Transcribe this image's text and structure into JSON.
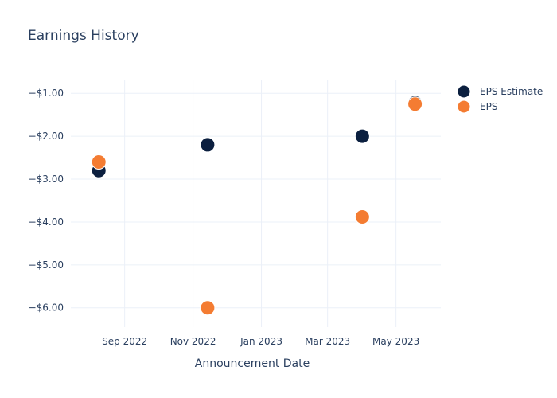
{
  "chart_data": {
    "type": "scatter",
    "title": "Earnings History",
    "xlabel": "Announcement Date",
    "ylabel": "",
    "x_tick_labels": [
      "Sep 2022",
      "Nov 2022",
      "Jan 2023",
      "Mar 2023",
      "May 2023"
    ],
    "x_ticks": [
      "2022-09-01",
      "2022-11-01",
      "2023-01-01",
      "2023-03-01",
      "2023-05-01"
    ],
    "x_range": [
      "2022-07-15",
      "2023-06-10"
    ],
    "y_tick_labels": [
      "−$1.00",
      "−$2.00",
      "−$3.00",
      "−$4.00",
      "−$5.00",
      "−$6.00"
    ],
    "y_ticks": [
      -1,
      -2,
      -3,
      -4,
      -5,
      -6
    ],
    "ylim": [
      -6.45,
      -0.68
    ],
    "grid": true,
    "legend_position": "top-right",
    "series": [
      {
        "name": "EPS Estimate",
        "color": "#0b1f3f",
        "points": [
          {
            "x": "2022-08-09",
            "y": -2.8
          },
          {
            "x": "2022-11-14",
            "y": -2.2
          },
          {
            "x": "2023-04-01",
            "y": -2.0
          },
          {
            "x": "2023-05-18",
            "y": -1.22
          }
        ]
      },
      {
        "name": "EPS",
        "color": "#f47c32",
        "points": [
          {
            "x": "2022-08-09",
            "y": -2.6
          },
          {
            "x": "2022-11-14",
            "y": -6.0
          },
          {
            "x": "2023-04-01",
            "y": -3.88
          },
          {
            "x": "2023-05-18",
            "y": -1.25
          }
        ]
      }
    ]
  }
}
